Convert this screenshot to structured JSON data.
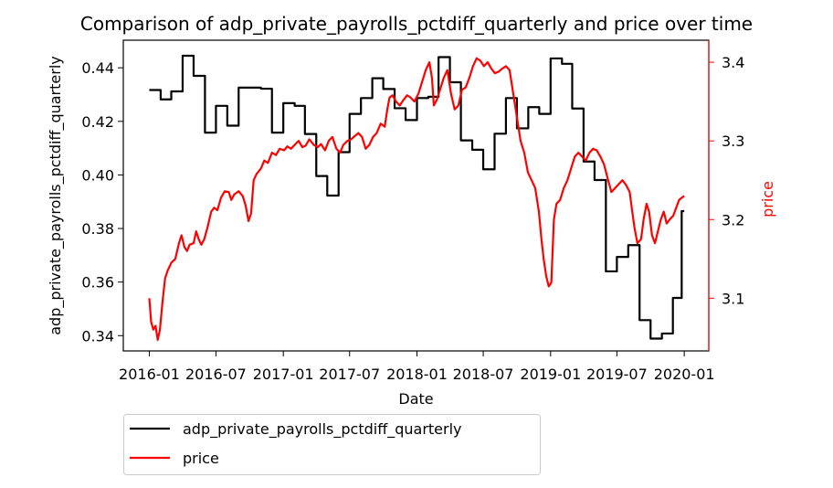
{
  "chart_data": {
    "type": "line",
    "title": "Comparison of adp_private_payrolls_pctdiff_quarterly and price over time",
    "xlabel": "Date",
    "ylabel_left": "adp_private_payrolls_pctdiff_quarterly",
    "ylabel_right": "price",
    "x_ticks": [
      "2016-01",
      "2016-07",
      "2017-01",
      "2017-07",
      "2018-01",
      "2018-07",
      "2019-01",
      "2019-07",
      "2020-01"
    ],
    "y_left_ticks": [
      "0.34",
      "0.36",
      "0.38",
      "0.40",
      "0.42",
      "0.44"
    ],
    "y_right_ticks": [
      "3.1",
      "3.2",
      "3.3",
      "3.4"
    ],
    "xlim": [
      "2015-10-22",
      "2020-03-08"
    ],
    "ylim_left": [
      0.3343,
      0.4503
    ],
    "ylim_right": [
      3.033,
      3.428
    ],
    "legend_position": "below-left",
    "colors": {
      "left_series": "#000000",
      "right_series": "#ff0000",
      "right_axis": "#ff0000"
    },
    "series": [
      {
        "name": "adp_private_payrolls_pctdiff_quarterly",
        "axis": "left",
        "color": "#000000",
        "points": [
          [
            "2016-01-01",
            0.4317
          ],
          [
            "2016-02-01",
            0.4317
          ],
          [
            "2016-02-01",
            0.4282
          ],
          [
            "2016-03-01",
            0.4282
          ],
          [
            "2016-03-01",
            0.4312
          ],
          [
            "2016-04-01",
            0.4312
          ],
          [
            "2016-04-01",
            0.4445
          ],
          [
            "2016-05-01",
            0.4445
          ],
          [
            "2016-05-01",
            0.437
          ],
          [
            "2016-06-01",
            0.437
          ],
          [
            "2016-06-01",
            0.4158
          ],
          [
            "2016-07-01",
            0.4158
          ],
          [
            "2016-07-01",
            0.4258
          ],
          [
            "2016-08-01",
            0.4258
          ],
          [
            "2016-08-01",
            0.4184
          ],
          [
            "2016-09-01",
            0.4184
          ],
          [
            "2016-09-01",
            0.4326
          ],
          [
            "2016-11-01",
            0.4326
          ],
          [
            "2016-11-01",
            0.4322
          ],
          [
            "2016-12-01",
            0.4322
          ],
          [
            "2016-12-01",
            0.4158
          ],
          [
            "2017-01-01",
            0.4158
          ],
          [
            "2017-01-01",
            0.4268
          ],
          [
            "2017-02-01",
            0.4268
          ],
          [
            "2017-02-01",
            0.4258
          ],
          [
            "2017-03-01",
            0.4258
          ],
          [
            "2017-03-01",
            0.4153
          ],
          [
            "2017-04-01",
            0.4153
          ],
          [
            "2017-04-01",
            0.3996
          ],
          [
            "2017-05-01",
            0.3996
          ],
          [
            "2017-05-01",
            0.3923
          ],
          [
            "2017-06-01",
            0.3923
          ],
          [
            "2017-06-01",
            0.4085
          ],
          [
            "2017-07-01",
            0.4085
          ],
          [
            "2017-07-01",
            0.4228
          ],
          [
            "2017-08-01",
            0.4228
          ],
          [
            "2017-08-01",
            0.4287
          ],
          [
            "2017-09-01",
            0.4287
          ],
          [
            "2017-09-01",
            0.4361
          ],
          [
            "2017-10-01",
            0.4361
          ],
          [
            "2017-10-01",
            0.4321
          ],
          [
            "2017-11-01",
            0.4321
          ],
          [
            "2017-11-01",
            0.4249
          ],
          [
            "2017-12-01",
            0.4249
          ],
          [
            "2017-12-01",
            0.4205
          ],
          [
            "2018-01-01",
            0.4205
          ],
          [
            "2018-01-01",
            0.4287
          ],
          [
            "2018-02-01",
            0.4287
          ],
          [
            "2018-02-01",
            0.4292
          ],
          [
            "2018-03-01",
            0.4292
          ],
          [
            "2018-03-01",
            0.444
          ],
          [
            "2018-04-01",
            0.444
          ],
          [
            "2018-04-01",
            0.4346
          ],
          [
            "2018-05-01",
            0.4346
          ],
          [
            "2018-05-01",
            0.4129
          ],
          [
            "2018-06-01",
            0.4129
          ],
          [
            "2018-06-01",
            0.4094
          ],
          [
            "2018-07-01",
            0.4094
          ],
          [
            "2018-07-01",
            0.4021
          ],
          [
            "2018-08-01",
            0.4021
          ],
          [
            "2018-08-01",
            0.4154
          ],
          [
            "2018-09-01",
            0.4154
          ],
          [
            "2018-09-01",
            0.4287
          ],
          [
            "2018-10-01",
            0.4287
          ],
          [
            "2018-10-01",
            0.4174
          ],
          [
            "2018-11-01",
            0.4174
          ],
          [
            "2018-11-01",
            0.4253
          ],
          [
            "2018-12-01",
            0.4253
          ],
          [
            "2018-12-01",
            0.4228
          ],
          [
            "2019-01-01",
            0.4228
          ],
          [
            "2019-01-01",
            0.4435
          ],
          [
            "2019-02-01",
            0.4435
          ],
          [
            "2019-02-01",
            0.4415
          ],
          [
            "2019-03-01",
            0.4415
          ],
          [
            "2019-03-01",
            0.4248
          ],
          [
            "2019-04-01",
            0.4248
          ],
          [
            "2019-04-01",
            0.405
          ],
          [
            "2019-05-01",
            0.405
          ],
          [
            "2019-05-01",
            0.3981
          ],
          [
            "2019-06-01",
            0.3981
          ],
          [
            "2019-06-01",
            0.364
          ],
          [
            "2019-07-01",
            0.364
          ],
          [
            "2019-07-01",
            0.3694
          ],
          [
            "2019-08-01",
            0.3694
          ],
          [
            "2019-08-01",
            0.3738
          ],
          [
            "2019-09-01",
            0.3738
          ],
          [
            "2019-09-01",
            0.3458
          ],
          [
            "2019-10-01",
            0.3458
          ],
          [
            "2019-10-01",
            0.3389
          ],
          [
            "2019-11-01",
            0.3389
          ],
          [
            "2019-11-01",
            0.3408
          ],
          [
            "2019-12-01",
            0.3408
          ],
          [
            "2019-12-01",
            0.3541
          ],
          [
            "2019-12-25",
            0.3541
          ],
          [
            "2019-12-25",
            0.3865
          ],
          [
            "2020-01-01",
            0.3865
          ]
        ]
      },
      {
        "name": "price",
        "axis": "right",
        "color": "#ff0000",
        "points": [
          [
            "2016-01-01",
            3.1
          ],
          [
            "2016-01-06",
            3.07
          ],
          [
            "2016-01-12",
            3.06
          ],
          [
            "2016-01-18",
            3.065
          ],
          [
            "2016-01-24",
            3.047
          ],
          [
            "2016-01-30",
            3.06
          ],
          [
            "2016-02-06",
            3.095
          ],
          [
            "2016-02-13",
            3.125
          ],
          [
            "2016-02-20",
            3.135
          ],
          [
            "2016-03-01",
            3.145
          ],
          [
            "2016-03-12",
            3.15
          ],
          [
            "2016-03-22",
            3.17
          ],
          [
            "2016-03-29",
            3.18
          ],
          [
            "2016-04-06",
            3.165
          ],
          [
            "2016-04-13",
            3.16
          ],
          [
            "2016-04-20",
            3.168
          ],
          [
            "2016-05-01",
            3.17
          ],
          [
            "2016-05-08",
            3.185
          ],
          [
            "2016-05-15",
            3.175
          ],
          [
            "2016-05-22",
            3.168
          ],
          [
            "2016-05-30",
            3.175
          ],
          [
            "2016-06-08",
            3.19
          ],
          [
            "2016-06-18",
            3.21
          ],
          [
            "2016-06-26",
            3.215
          ],
          [
            "2016-07-05",
            3.212
          ],
          [
            "2016-07-15",
            3.228
          ],
          [
            "2016-07-25",
            3.236
          ],
          [
            "2016-08-05",
            3.235
          ],
          [
            "2016-08-12",
            3.225
          ],
          [
            "2016-08-20",
            3.232
          ],
          [
            "2016-09-01",
            3.236
          ],
          [
            "2016-09-12",
            3.23
          ],
          [
            "2016-09-20",
            3.218
          ],
          [
            "2016-09-28",
            3.198
          ],
          [
            "2016-10-05",
            3.208
          ],
          [
            "2016-10-12",
            3.25
          ],
          [
            "2016-10-20",
            3.258
          ],
          [
            "2016-11-01",
            3.265
          ],
          [
            "2016-11-10",
            3.275
          ],
          [
            "2016-11-20",
            3.272
          ],
          [
            "2016-12-01",
            3.285
          ],
          [
            "2016-12-12",
            3.282
          ],
          [
            "2016-12-22",
            3.29
          ],
          [
            "2017-01-03",
            3.288
          ],
          [
            "2017-01-12",
            3.293
          ],
          [
            "2017-01-22",
            3.29
          ],
          [
            "2017-02-01",
            3.295
          ],
          [
            "2017-02-12",
            3.3
          ],
          [
            "2017-02-22",
            3.292
          ],
          [
            "2017-03-03",
            3.294
          ],
          [
            "2017-03-13",
            3.302
          ],
          [
            "2017-03-25",
            3.295
          ],
          [
            "2017-04-05",
            3.292
          ],
          [
            "2017-04-14",
            3.296
          ],
          [
            "2017-04-25",
            3.288
          ],
          [
            "2017-05-05",
            3.3
          ],
          [
            "2017-05-15",
            3.305
          ],
          [
            "2017-05-26",
            3.29
          ],
          [
            "2017-06-05",
            3.285
          ],
          [
            "2017-06-14",
            3.295
          ],
          [
            "2017-06-25",
            3.3
          ],
          [
            "2017-07-05",
            3.302
          ],
          [
            "2017-07-15",
            3.306
          ],
          [
            "2017-07-25",
            3.31
          ],
          [
            "2017-08-04",
            3.305
          ],
          [
            "2017-08-14",
            3.29
          ],
          [
            "2017-08-24",
            3.295
          ],
          [
            "2017-09-03",
            3.305
          ],
          [
            "2017-09-13",
            3.31
          ],
          [
            "2017-09-24",
            3.322
          ],
          [
            "2017-10-05",
            3.318
          ],
          [
            "2017-10-12",
            3.34
          ],
          [
            "2017-10-18",
            3.355
          ],
          [
            "2017-10-26",
            3.358
          ],
          [
            "2017-11-05",
            3.35
          ],
          [
            "2017-11-15",
            3.345
          ],
          [
            "2017-11-25",
            3.352
          ],
          [
            "2017-12-05",
            3.358
          ],
          [
            "2017-12-15",
            3.355
          ],
          [
            "2017-12-25",
            3.35
          ],
          [
            "2018-01-05",
            3.36
          ],
          [
            "2018-01-15",
            3.375
          ],
          [
            "2018-01-25",
            3.39
          ],
          [
            "2018-02-04",
            3.4
          ],
          [
            "2018-02-11",
            3.38
          ],
          [
            "2018-02-16",
            3.345
          ],
          [
            "2018-02-24",
            3.352
          ],
          [
            "2018-03-05",
            3.365
          ],
          [
            "2018-03-15",
            3.38
          ],
          [
            "2018-03-25",
            3.39
          ],
          [
            "2018-04-04",
            3.36
          ],
          [
            "2018-04-14",
            3.34
          ],
          [
            "2018-04-24",
            3.345
          ],
          [
            "2018-05-04",
            3.365
          ],
          [
            "2018-05-14",
            3.368
          ],
          [
            "2018-05-24",
            3.38
          ],
          [
            "2018-06-03",
            3.395
          ],
          [
            "2018-06-13",
            3.405
          ],
          [
            "2018-06-23",
            3.402
          ],
          [
            "2018-07-03",
            3.395
          ],
          [
            "2018-07-13",
            3.4
          ],
          [
            "2018-07-23",
            3.392
          ],
          [
            "2018-08-02",
            3.386
          ],
          [
            "2018-08-12",
            3.388
          ],
          [
            "2018-08-22",
            3.392
          ],
          [
            "2018-09-01",
            3.395
          ],
          [
            "2018-09-11",
            3.39
          ],
          [
            "2018-09-21",
            3.36
          ],
          [
            "2018-10-01",
            3.33
          ],
          [
            "2018-10-11",
            3.3
          ],
          [
            "2018-10-21",
            3.285
          ],
          [
            "2018-10-31",
            3.26
          ],
          [
            "2018-11-10",
            3.25
          ],
          [
            "2018-11-20",
            3.24
          ],
          [
            "2018-11-30",
            3.21
          ],
          [
            "2018-12-07",
            3.175
          ],
          [
            "2018-12-13",
            3.15
          ],
          [
            "2018-12-20",
            3.128
          ],
          [
            "2018-12-27",
            3.115
          ],
          [
            "2019-01-03",
            3.12
          ],
          [
            "2019-01-10",
            3.2
          ],
          [
            "2019-01-17",
            3.22
          ],
          [
            "2019-01-27",
            3.225
          ],
          [
            "2019-02-06",
            3.24
          ],
          [
            "2019-02-16",
            3.25
          ],
          [
            "2019-02-26",
            3.265
          ],
          [
            "2019-03-08",
            3.28
          ],
          [
            "2019-03-18",
            3.285
          ],
          [
            "2019-03-28",
            3.28
          ],
          [
            "2019-04-07",
            3.275
          ],
          [
            "2019-04-17",
            3.285
          ],
          [
            "2019-04-27",
            3.29
          ],
          [
            "2019-05-07",
            3.288
          ],
          [
            "2019-05-17",
            3.28
          ],
          [
            "2019-05-27",
            3.27
          ],
          [
            "2019-06-06",
            3.252
          ],
          [
            "2019-06-16",
            3.235
          ],
          [
            "2019-06-26",
            3.24
          ],
          [
            "2019-07-06",
            3.245
          ],
          [
            "2019-07-16",
            3.25
          ],
          [
            "2019-07-26",
            3.244
          ],
          [
            "2019-08-05",
            3.235
          ],
          [
            "2019-08-12",
            3.21
          ],
          [
            "2019-08-18",
            3.19
          ],
          [
            "2019-08-26",
            3.17
          ],
          [
            "2019-09-05",
            3.175
          ],
          [
            "2019-09-12",
            3.2
          ],
          [
            "2019-09-20",
            3.22
          ],
          [
            "2019-09-27",
            3.21
          ],
          [
            "2019-10-05",
            3.18
          ],
          [
            "2019-10-13",
            3.17
          ],
          [
            "2019-10-21",
            3.185
          ],
          [
            "2019-10-29",
            3.2
          ],
          [
            "2019-11-06",
            3.21
          ],
          [
            "2019-11-14",
            3.195
          ],
          [
            "2019-11-22",
            3.2
          ],
          [
            "2019-12-02",
            3.205
          ],
          [
            "2019-12-10",
            3.215
          ],
          [
            "2019-12-18",
            3.225
          ],
          [
            "2019-12-26",
            3.228
          ],
          [
            "2020-01-01",
            3.23
          ]
        ]
      }
    ]
  }
}
